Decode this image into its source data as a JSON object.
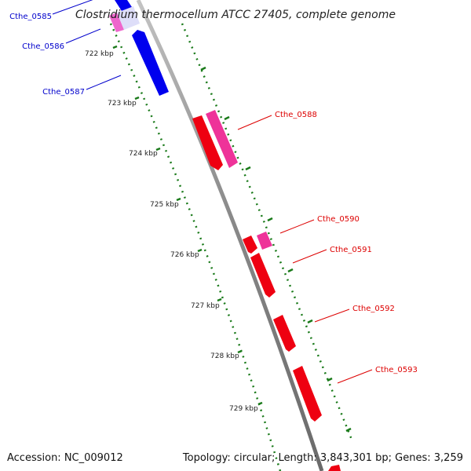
{
  "title": "Clostridium thermocellum ATCC 27405, complete genome",
  "footer": {
    "accession": "Accession: NC_009012",
    "summary": "Topology: circular; Length: 3,843,301 bp; Genes: 3,259"
  },
  "colors": {
    "backbone": "#888888",
    "tick": "#1a7a1a",
    "reverse_strand": "#0000ee",
    "reverse_strand_alt": "#ee66cc",
    "forward_strand": "#ee0011",
    "forward_strand_alt": "#ee3399",
    "forward_label": "#dd0000",
    "reverse_label": "#0000cc"
  },
  "scale": {
    "tick_labels": [
      "722 kbp",
      "723 kbp",
      "724 kbp",
      "725 kbp",
      "726 kbp",
      "727 kbp",
      "728 kbp",
      "729 kbp"
    ]
  },
  "genes": {
    "reverse": [
      {
        "label": "Cthe_0585"
      },
      {
        "label": "Cthe_0586"
      },
      {
        "label": "Cthe_0587"
      }
    ],
    "forward": [
      {
        "label": "Cthe_0588"
      },
      {
        "label": "Cthe_0590"
      },
      {
        "label": "Cthe_0591"
      },
      {
        "label": "Cthe_0592"
      },
      {
        "label": "Cthe_0593"
      }
    ]
  }
}
